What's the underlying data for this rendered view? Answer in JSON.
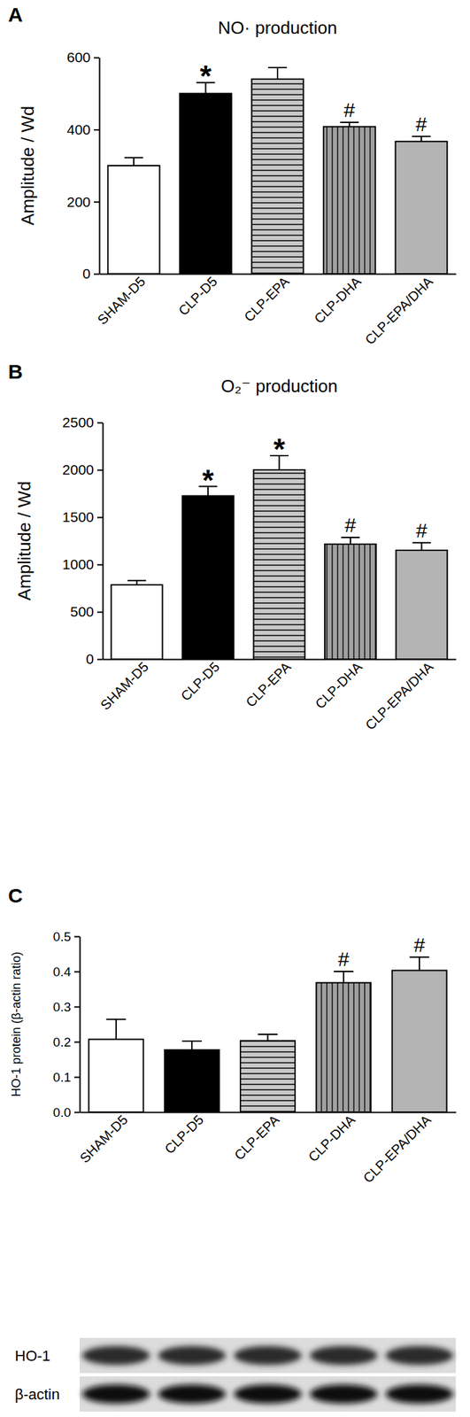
{
  "chart_data": [
    {
      "type": "bar",
      "panel": "A",
      "title": "NO· production",
      "y_label": "Amplitude / Wd",
      "categories": [
        "SHAM-D5",
        "CLP-D5",
        "CLP-EPA",
        "CLP-DHA",
        "CLP-EPA/DHA"
      ],
      "values": [
        300,
        500,
        540,
        408,
        367
      ],
      "errors": [
        22,
        30,
        32,
        12,
        14
      ],
      "annotations": [
        null,
        "*",
        null,
        "#",
        "#"
      ],
      "colors": [
        "#ffffff",
        "#000000",
        "#c8c8c8",
        "#a0a0a0",
        "#b4b4b4"
      ],
      "ylim": [
        0,
        600
      ],
      "yticks": [
        0,
        200,
        400,
        600
      ]
    },
    {
      "type": "bar",
      "panel": "B",
      "title": "O₂⁻ production",
      "y_label": "Amplitude / Wd",
      "categories": [
        "SHAM-D5",
        "CLP-D5",
        "CLP-EPA",
        "CLP-DHA",
        "CLP-EPA/DHA"
      ],
      "values": [
        785,
        1725,
        2000,
        1215,
        1150
      ],
      "errors": [
        45,
        100,
        150,
        70,
        80
      ],
      "annotations": [
        null,
        "*",
        "*",
        "#",
        "#"
      ],
      "colors": [
        "#ffffff",
        "#000000",
        "#c8c8c8",
        "#a0a0a0",
        "#b4b4b4"
      ],
      "ylim": [
        0,
        2500
      ],
      "yticks": [
        0,
        500,
        1000,
        1500,
        2000,
        2500
      ]
    },
    {
      "type": "bar",
      "panel": "C",
      "y_label": "HO-1 protein (β-actin ratio)",
      "categories": [
        "SHAM-D5",
        "CLP-D5",
        "CLP-EPA",
        "CLP-DHA",
        "CLP-EPA/DHA"
      ],
      "values": [
        0.207,
        0.177,
        0.203,
        0.368,
        0.403
      ],
      "errors": [
        0.057,
        0.025,
        0.018,
        0.032,
        0.038
      ],
      "annotations": [
        null,
        null,
        null,
        "#",
        "#"
      ],
      "colors": [
        "#ffffff",
        "#000000",
        "#c8c8c8",
        "#a0a0a0",
        "#b4b4b4"
      ],
      "ylim": [
        0,
        0.5
      ],
      "yticks": [
        {
          "value": 0,
          "label": "0.0"
        },
        0.1,
        0.2,
        0.3,
        0.4,
        0.5
      ]
    }
  ],
  "blot": {
    "rows": [
      "HO-1",
      "β-actin"
    ]
  }
}
